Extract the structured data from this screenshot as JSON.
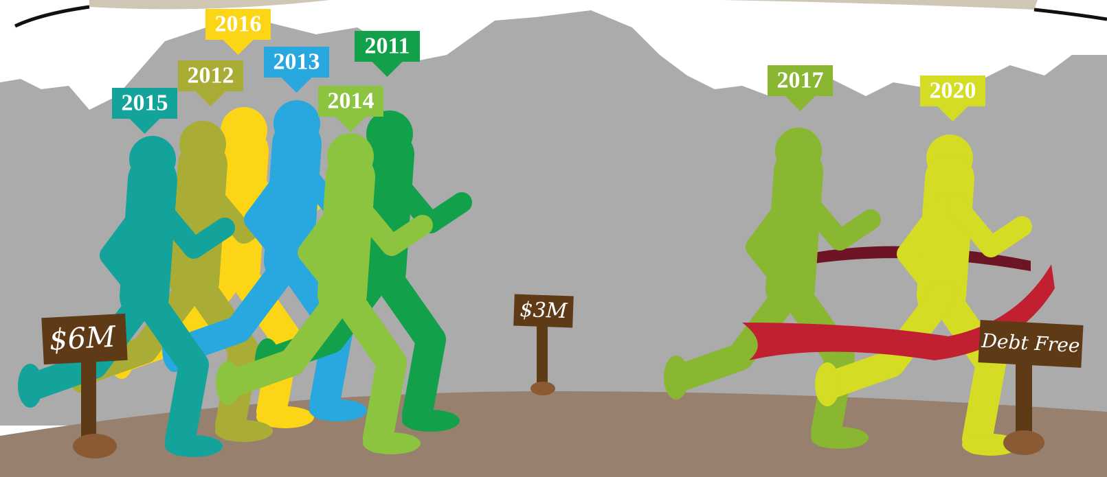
{
  "year_tags": [
    "2015",
    "2012",
    "2016",
    "2013",
    "2014",
    "2011",
    "2017",
    "2020"
  ],
  "signs": [
    "$6M",
    "$3M",
    "Debt Free"
  ]
}
